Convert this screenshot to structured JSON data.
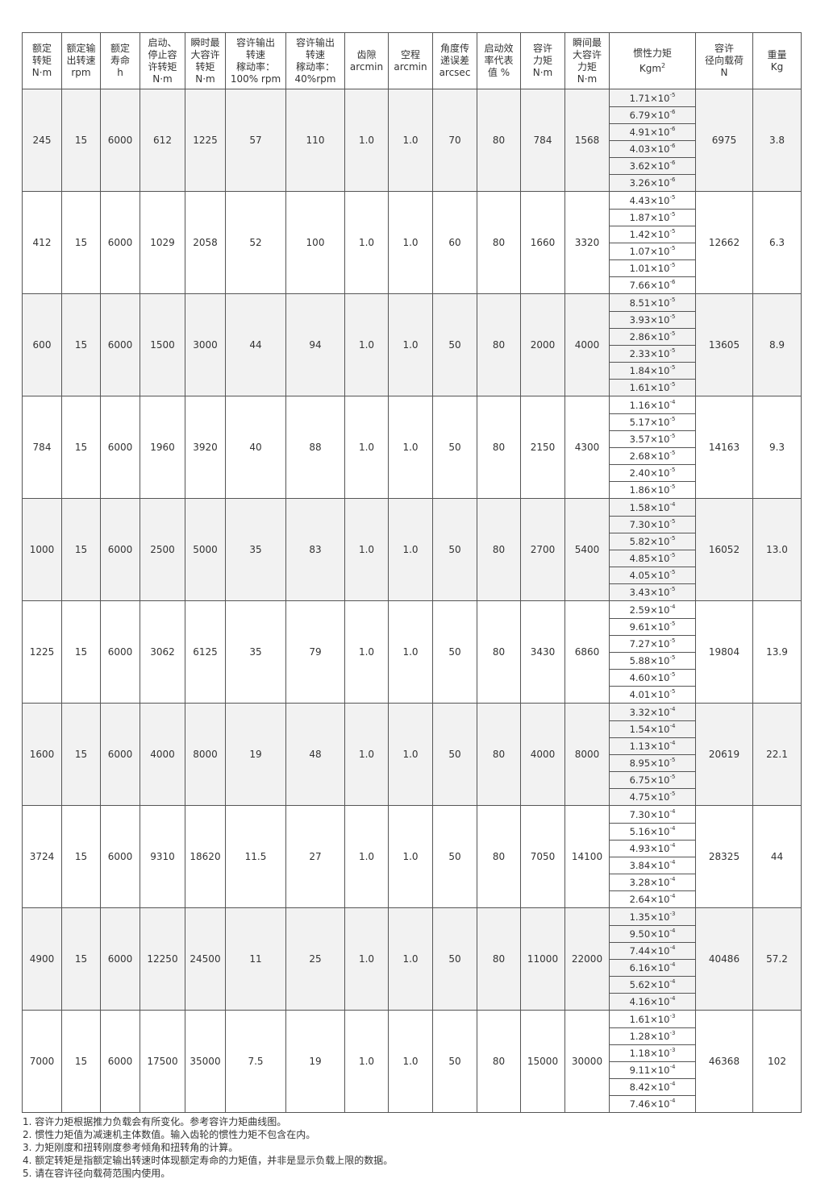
{
  "headers": [
    "额定\n转矩\nN·m",
    "额定输\n出转速\nrpm",
    "额定\n寿命\nh",
    "启动、\n停止容\n许转矩\nN·m",
    "瞬时最\n大容许\n转矩\nN·m",
    "容许输出\n转速\n稼动率：\n100%  rpm",
    "容许输出\n转速\n稼动率：\n40%rpm",
    "齿隙\narcmin",
    "空程\narcmin",
    "角度传\n递误差\narcsec",
    "启动效\n率代表\n值 %",
    "容许\n力矩\nN·m",
    "瞬间最\n大容许\n力矩\nN·m",
    "惯性力矩\nKgm²",
    "容许\n径向载荷\nN",
    "重量\nKg"
  ],
  "rows": [
    {
      "values": [
        "245",
        "15",
        "6000",
        "612",
        "1225",
        "57",
        "110",
        "1.0",
        "1.0",
        "70",
        "80",
        "784",
        "1568"
      ],
      "inertia": [
        [
          "1.71",
          "-5"
        ],
        [
          "6.79",
          "-6"
        ],
        [
          "4.91",
          "-6"
        ],
        [
          "4.03",
          "-6"
        ],
        [
          "3.62",
          "-6"
        ],
        [
          "3.26",
          "-6"
        ]
      ],
      "radial": "6975",
      "weight": "3.8"
    },
    {
      "values": [
        "412",
        "15",
        "6000",
        "1029",
        "2058",
        "52",
        "100",
        "1.0",
        "1.0",
        "60",
        "80",
        "1660",
        "3320"
      ],
      "inertia": [
        [
          "4.43",
          "-5"
        ],
        [
          "1.87",
          "-5"
        ],
        [
          "1.42",
          "-5"
        ],
        [
          "1.07",
          "-5"
        ],
        [
          "1.01",
          "-5"
        ],
        [
          "7.66",
          "-6"
        ]
      ],
      "radial": "12662",
      "weight": "6.3"
    },
    {
      "values": [
        "600",
        "15",
        "6000",
        "1500",
        "3000",
        "44",
        "94",
        "1.0",
        "1.0",
        "50",
        "80",
        "2000",
        "4000"
      ],
      "inertia": [
        [
          "8.51",
          "-5"
        ],
        [
          "3.93",
          "-5"
        ],
        [
          "2.86",
          "-5"
        ],
        [
          "2.33",
          "-5"
        ],
        [
          "1.84",
          "-5"
        ],
        [
          "1.61",
          "-5"
        ]
      ],
      "radial": "13605",
      "weight": "8.9"
    },
    {
      "values": [
        "784",
        "15",
        "6000",
        "1960",
        "3920",
        "40",
        "88",
        "1.0",
        "1.0",
        "50",
        "80",
        "2150",
        "4300"
      ],
      "inertia": [
        [
          "1.16",
          "-4"
        ],
        [
          "5.17",
          "-5"
        ],
        [
          "3.57",
          "-5"
        ],
        [
          "2.68",
          "-5"
        ],
        [
          "2.40",
          "-5"
        ],
        [
          "1.86",
          "-5"
        ]
      ],
      "radial": "14163",
      "weight": "9.3"
    },
    {
      "values": [
        "1000",
        "15",
        "6000",
        "2500",
        "5000",
        "35",
        "83",
        "1.0",
        "1.0",
        "50",
        "80",
        "2700",
        "5400"
      ],
      "inertia": [
        [
          "1.58",
          "-4"
        ],
        [
          "7.30",
          "-5"
        ],
        [
          "5.82",
          "-5"
        ],
        [
          "4.85",
          "-5"
        ],
        [
          "4.05",
          "-5"
        ],
        [
          "3.43",
          "-5"
        ]
      ],
      "radial": "16052",
      "weight": "13.0"
    },
    {
      "values": [
        "1225",
        "15",
        "6000",
        "3062",
        "6125",
        "35",
        "79",
        "1.0",
        "1.0",
        "50",
        "80",
        "3430",
        "6860"
      ],
      "inertia": [
        [
          "2.59",
          "-4"
        ],
        [
          "9.61",
          "-5"
        ],
        [
          "7.27",
          "-5"
        ],
        [
          "5.88",
          "-5"
        ],
        [
          "4.60",
          "-5"
        ],
        [
          "4.01",
          "-5"
        ]
      ],
      "radial": "19804",
      "weight": "13.9"
    },
    {
      "values": [
        "1600",
        "15",
        "6000",
        "4000",
        "8000",
        "19",
        "48",
        "1.0",
        "1.0",
        "50",
        "80",
        "4000",
        "8000"
      ],
      "inertia": [
        [
          "3.32",
          "-4"
        ],
        [
          "1.54",
          "-4"
        ],
        [
          "1.13",
          "-4"
        ],
        [
          "8.95",
          "-5"
        ],
        [
          "6.75",
          "-5"
        ],
        [
          "4.75",
          "-5"
        ]
      ],
      "radial": "20619",
      "weight": "22.1"
    },
    {
      "values": [
        "3724",
        "15",
        "6000",
        "9310",
        "18620",
        "11.5",
        "27",
        "1.0",
        "1.0",
        "50",
        "80",
        "7050",
        "14100"
      ],
      "inertia": [
        [
          "7.30",
          "-4"
        ],
        [
          "5.16",
          "-4"
        ],
        [
          "4.93",
          "-4"
        ],
        [
          "3.84",
          "-4"
        ],
        [
          "3.28",
          "-4"
        ],
        [
          "2.64",
          "-4"
        ]
      ],
      "radial": "28325",
      "weight": "44"
    },
    {
      "values": [
        "4900",
        "15",
        "6000",
        "12250",
        "24500",
        "11",
        "25",
        "1.0",
        "1.0",
        "50",
        "80",
        "11000",
        "22000"
      ],
      "inertia": [
        [
          "1.35",
          "-3"
        ],
        [
          "9.50",
          "-4"
        ],
        [
          "7.44",
          "-4"
        ],
        [
          "6.16",
          "-4"
        ],
        [
          "5.62",
          "-4"
        ],
        [
          "4.16",
          "-4"
        ]
      ],
      "radial": "40486",
      "weight": "57.2"
    },
    {
      "values": [
        "7000",
        "15",
        "6000",
        "17500",
        "35000",
        "7.5",
        "19",
        "1.0",
        "1.0",
        "50",
        "80",
        "15000",
        "30000"
      ],
      "inertia": [
        [
          "1.61",
          "-3"
        ],
        [
          "1.28",
          "-3"
        ],
        [
          "1.18",
          "-3"
        ],
        [
          "9.11",
          "-4"
        ],
        [
          "8.42",
          "-4"
        ],
        [
          "7.46",
          "-4"
        ]
      ],
      "radial": "46368",
      "weight": "102"
    }
  ],
  "notes": [
    "1. 容许力矩根据推力负载会有所变化。参考容许力矩曲线图。",
    "2. 惯性力矩值为减速机主体数值。输入齿轮的惯性力矩不包含在内。",
    "3. 力矩刚度和扭转刚度参考倾角和扭转角的计算。",
    "4. 额定转矩是指额定输出转速时体现额定寿命的力矩值，并非是显示负载上限的数据。",
    "5. 请在容许径向载荷范围内使用。"
  ],
  "colors": {
    "stripe": "#f2f2f2",
    "border": "#555555",
    "text": "#333333"
  }
}
